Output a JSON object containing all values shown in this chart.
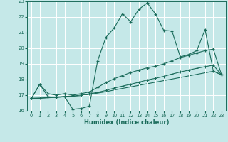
{
  "xlabel": "Humidex (Indice chaleur)",
  "xlim": [
    -0.5,
    23.5
  ],
  "ylim": [
    16,
    23
  ],
  "yticks": [
    16,
    17,
    18,
    19,
    20,
    21,
    22,
    23
  ],
  "xticks": [
    0,
    1,
    2,
    3,
    4,
    5,
    6,
    7,
    8,
    9,
    10,
    11,
    12,
    13,
    14,
    15,
    16,
    17,
    18,
    19,
    20,
    21,
    22,
    23
  ],
  "background_color": "#c5e8e8",
  "grid_color": "#ffffff",
  "line_color": "#1a6b5a",
  "line1_x": [
    0,
    1,
    2,
    3,
    4,
    5,
    6,
    7,
    8,
    9,
    10,
    11,
    12,
    13,
    14,
    15,
    16,
    17,
    18,
    19,
    20,
    21,
    22,
    23
  ],
  "line1_y": [
    16.8,
    17.7,
    16.9,
    16.85,
    16.9,
    16.1,
    16.15,
    16.3,
    19.2,
    20.7,
    21.3,
    22.2,
    21.7,
    22.5,
    22.9,
    22.2,
    21.15,
    21.1,
    19.45,
    19.6,
    19.85,
    21.2,
    18.55,
    18.3
  ],
  "line2_x": [
    0,
    1,
    2,
    3,
    4,
    5,
    6,
    7,
    8,
    9,
    10,
    11,
    12,
    13,
    14,
    15,
    16,
    17,
    18,
    19,
    20,
    21,
    22,
    23
  ],
  "line2_y": [
    16.8,
    17.7,
    17.1,
    17.0,
    17.1,
    17.0,
    17.1,
    17.2,
    17.5,
    17.8,
    18.05,
    18.25,
    18.45,
    18.6,
    18.75,
    18.85,
    19.0,
    19.2,
    19.4,
    19.55,
    19.7,
    19.85,
    19.95,
    18.3
  ],
  "line3_x": [
    0,
    1,
    2,
    3,
    4,
    5,
    6,
    7,
    8,
    9,
    10,
    11,
    12,
    13,
    14,
    15,
    16,
    17,
    18,
    19,
    20,
    21,
    22,
    23
  ],
  "line3_y": [
    16.8,
    16.82,
    16.85,
    16.88,
    16.92,
    16.95,
    17.0,
    17.08,
    17.18,
    17.3,
    17.45,
    17.58,
    17.7,
    17.83,
    17.97,
    18.08,
    18.2,
    18.35,
    18.48,
    18.6,
    18.72,
    18.82,
    18.92,
    18.3
  ],
  "line4_x": [
    0,
    1,
    2,
    3,
    4,
    5,
    6,
    7,
    8,
    9,
    10,
    11,
    12,
    13,
    14,
    15,
    16,
    17,
    18,
    19,
    20,
    21,
    22,
    23
  ],
  "line4_y": [
    16.8,
    16.8,
    16.83,
    16.87,
    16.9,
    16.93,
    16.97,
    17.05,
    17.13,
    17.22,
    17.33,
    17.43,
    17.53,
    17.63,
    17.73,
    17.83,
    17.93,
    18.03,
    18.13,
    18.23,
    18.33,
    18.43,
    18.53,
    18.3
  ]
}
